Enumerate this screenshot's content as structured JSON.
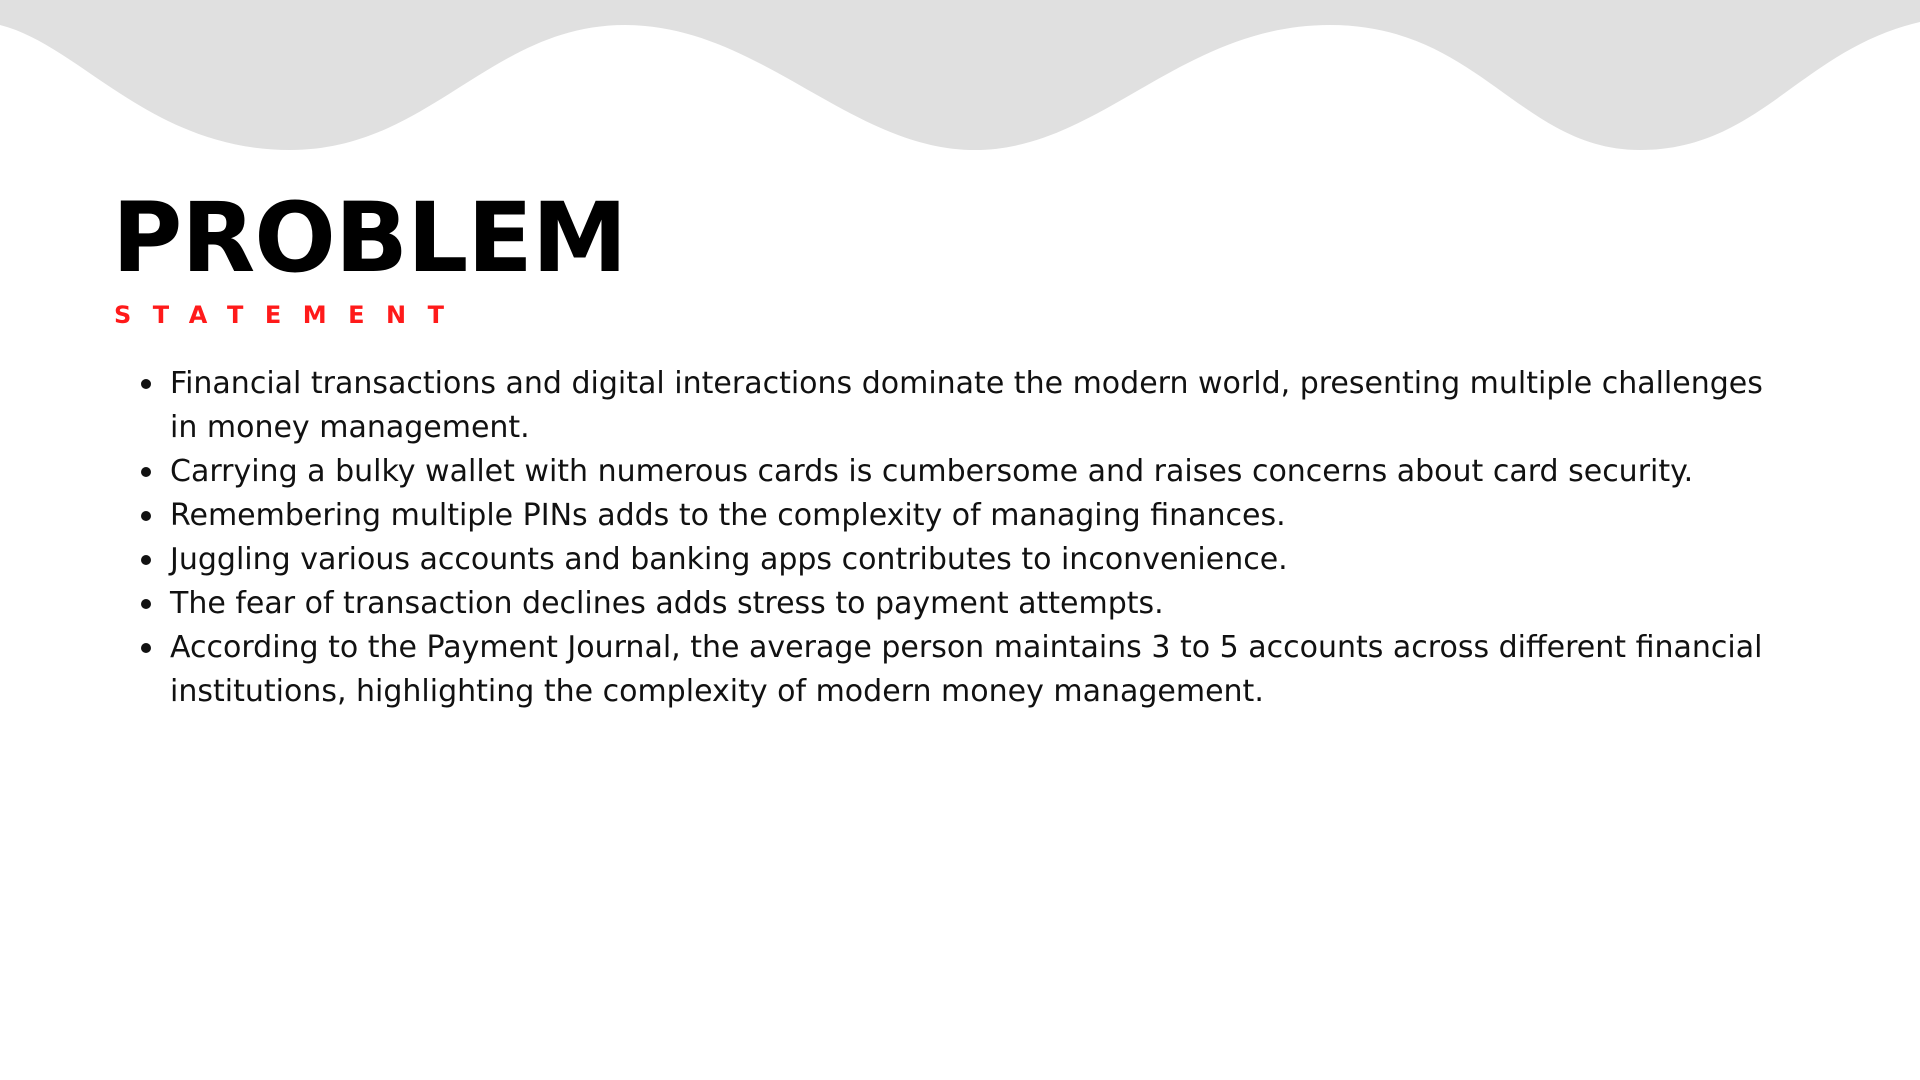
{
  "colors": {
    "wave": "#e0e0e0",
    "accent": "#ff1a1a",
    "text": "#111111",
    "background": "#ffffff"
  },
  "slide": {
    "title": "PROBLEM",
    "subtitle": "STATEMENT",
    "bullets": [
      "Financial transactions and digital interactions dominate the modern world, presenting multiple challenges in money management.",
      "Carrying a bulky wallet with numerous cards is cumbersome and raises concerns about card security.",
      "Remembering multiple PINs adds to the complexity of managing finances.",
      "Juggling various accounts and banking apps contributes to inconvenience.",
      "The fear of transaction declines adds stress to payment attempts.",
      "According to the Payment Journal, the average person maintains 3 to 5 accounts across different financial institutions, highlighting the complexity of modern money management."
    ]
  }
}
